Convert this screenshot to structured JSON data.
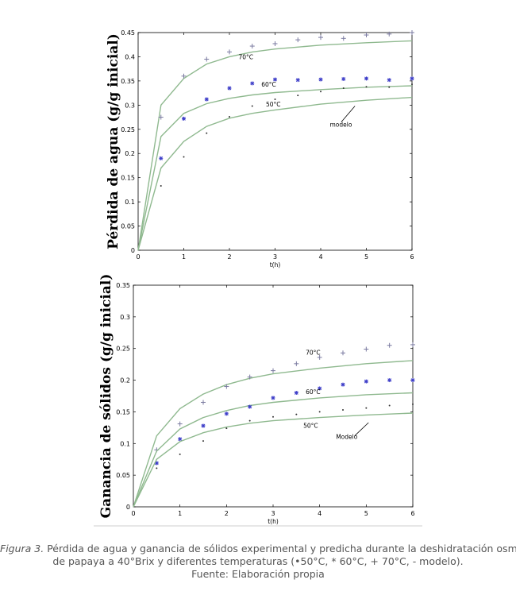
{
  "chart_data": [
    {
      "type": "line",
      "ylabel": "Pérdida de agua (g/g inicial)",
      "xlabel": "t(h)",
      "xlim": [
        0,
        6
      ],
      "ylim": [
        0,
        0.45
      ],
      "xticks": [
        "0",
        "1",
        "2",
        "3",
        "4",
        "5",
        "6"
      ],
      "yticks": [
        "0",
        "0.05",
        "0.1",
        "0.15",
        "0.2",
        "0.25",
        "0.3",
        "0.35",
        "0.4",
        "0.45"
      ],
      "grid": false,
      "series": [
        {
          "name": "70°C",
          "marker": "+",
          "points": [
            [
              0.5,
              0.275
            ],
            [
              1,
              0.36
            ],
            [
              1.5,
              0.395
            ],
            [
              2,
              0.41
            ],
            [
              2.5,
              0.422
            ],
            [
              3,
              0.427
            ],
            [
              3.5,
              0.435
            ],
            [
              4,
              0.44
            ],
            [
              4.5,
              0.438
            ],
            [
              5,
              0.445
            ],
            [
              5.5,
              0.447
            ],
            [
              6,
              0.45
            ]
          ],
          "model": [
            [
              0,
              0
            ],
            [
              0.5,
              0.3
            ],
            [
              1,
              0.355
            ],
            [
              1.5,
              0.385
            ],
            [
              2,
              0.4
            ],
            [
              2.5,
              0.41
            ],
            [
              3,
              0.416
            ],
            [
              4,
              0.424
            ],
            [
              5,
              0.429
            ],
            [
              6,
              0.433
            ]
          ]
        },
        {
          "name": "60°C",
          "marker": "*",
          "points": [
            [
              0.5,
              0.19
            ],
            [
              1,
              0.272
            ],
            [
              1.5,
              0.312
            ],
            [
              2,
              0.335
            ],
            [
              2.5,
              0.345
            ],
            [
              3,
              0.353
            ],
            [
              3.5,
              0.352
            ],
            [
              4,
              0.353
            ],
            [
              4.5,
              0.354
            ],
            [
              5,
              0.355
            ],
            [
              5.5,
              0.352
            ],
            [
              6,
              0.355
            ]
          ],
          "model": [
            [
              0,
              0
            ],
            [
              0.5,
              0.235
            ],
            [
              1,
              0.283
            ],
            [
              1.5,
              0.303
            ],
            [
              2,
              0.314
            ],
            [
              2.5,
              0.321
            ],
            [
              3,
              0.326
            ],
            [
              4,
              0.332
            ],
            [
              5,
              0.337
            ],
            [
              6,
              0.34
            ]
          ]
        },
        {
          "name": "50°C",
          "marker": ".",
          "points": [
            [
              0.5,
              0.133
            ],
            [
              1,
              0.193
            ],
            [
              1.5,
              0.242
            ],
            [
              2,
              0.276
            ],
            [
              2.5,
              0.298
            ],
            [
              3,
              0.312
            ],
            [
              3.5,
              0.32
            ],
            [
              4,
              0.328
            ],
            [
              4.5,
              0.335
            ],
            [
              5,
              0.338
            ],
            [
              5.5,
              0.337
            ],
            [
              6,
              0.343
            ]
          ],
          "model": [
            [
              0,
              0
            ],
            [
              0.5,
              0.17
            ],
            [
              1,
              0.225
            ],
            [
              1.5,
              0.256
            ],
            [
              2,
              0.273
            ],
            [
              2.5,
              0.283
            ],
            [
              3,
              0.29
            ],
            [
              4,
              0.302
            ],
            [
              5,
              0.31
            ],
            [
              6,
              0.316
            ]
          ]
        }
      ],
      "annotations": [
        {
          "text": "70°C",
          "x": 2.2,
          "y": 0.395
        },
        {
          "text": "60°C",
          "x": 2.7,
          "y": 0.338
        },
        {
          "text": "50°C",
          "x": 2.8,
          "y": 0.297
        },
        {
          "text": "modelo",
          "x": 4.2,
          "y": 0.255
        }
      ]
    },
    {
      "type": "line",
      "ylabel": "Ganancia de sólidos (g/g inicial)",
      "xlabel": "t(h)",
      "xlim": [
        0,
        6
      ],
      "ylim": [
        0,
        0.35
      ],
      "xticks": [
        "0",
        "1",
        "2",
        "3",
        "4",
        "5",
        "6"
      ],
      "yticks": [
        "0",
        "0.05",
        "0.1",
        "0.15",
        "0.2",
        "0.25",
        "0.3",
        "0.35"
      ],
      "grid": false,
      "series": [
        {
          "name": "70°C",
          "marker": "+",
          "points": [
            [
              0.5,
              0.09
            ],
            [
              1,
              0.131
            ],
            [
              1.5,
              0.165
            ],
            [
              2,
              0.19
            ],
            [
              2.5,
              0.205
            ],
            [
              3,
              0.215
            ],
            [
              3.5,
              0.226
            ],
            [
              4,
              0.236
            ],
            [
              4.5,
              0.243
            ],
            [
              5,
              0.249
            ],
            [
              5.5,
              0.255
            ],
            [
              6,
              0.256
            ]
          ],
          "model": [
            [
              0,
              0
            ],
            [
              0.5,
              0.112
            ],
            [
              1,
              0.155
            ],
            [
              1.5,
              0.178
            ],
            [
              2,
              0.193
            ],
            [
              2.5,
              0.203
            ],
            [
              3,
              0.21
            ],
            [
              4,
              0.219
            ],
            [
              5,
              0.226
            ],
            [
              6,
              0.231
            ]
          ]
        },
        {
          "name": "60°C",
          "marker": "*",
          "points": [
            [
              0.5,
              0.069
            ],
            [
              1,
              0.107
            ],
            [
              1.5,
              0.128
            ],
            [
              2,
              0.147
            ],
            [
              2.5,
              0.158
            ],
            [
              3,
              0.172
            ],
            [
              3.5,
              0.18
            ],
            [
              4,
              0.187
            ],
            [
              4.5,
              0.193
            ],
            [
              5,
              0.198
            ],
            [
              5.5,
              0.2
            ],
            [
              6,
              0.2
            ]
          ],
          "model": [
            [
              0,
              0
            ],
            [
              0.5,
              0.088
            ],
            [
              1,
              0.123
            ],
            [
              1.5,
              0.141
            ],
            [
              2,
              0.152
            ],
            [
              2.5,
              0.16
            ],
            [
              3,
              0.165
            ],
            [
              4,
              0.172
            ],
            [
              5,
              0.177
            ],
            [
              6,
              0.18
            ]
          ]
        },
        {
          "name": "50°C",
          "marker": ".",
          "points": [
            [
              0.5,
              0.061
            ],
            [
              1,
              0.083
            ],
            [
              1.5,
              0.104
            ],
            [
              2,
              0.124
            ],
            [
              2.5,
              0.136
            ],
            [
              3,
              0.142
            ],
            [
              3.5,
              0.146
            ],
            [
              4,
              0.15
            ],
            [
              4.5,
              0.153
            ],
            [
              5,
              0.156
            ],
            [
              5.5,
              0.16
            ],
            [
              6,
              0.162
            ]
          ],
          "model": [
            [
              0,
              0
            ],
            [
              0.5,
              0.075
            ],
            [
              1,
              0.103
            ],
            [
              1.5,
              0.117
            ],
            [
              2,
              0.126
            ],
            [
              2.5,
              0.132
            ],
            [
              3,
              0.136
            ],
            [
              4,
              0.141
            ],
            [
              5,
              0.145
            ],
            [
              6,
              0.148
            ]
          ]
        }
      ],
      "annotations": [
        {
          "text": "70°C",
          "x": 3.7,
          "y": 0.24
        },
        {
          "text": "60°C",
          "x": 3.7,
          "y": 0.178
        },
        {
          "text": "50°C",
          "x": 3.65,
          "y": 0.125
        },
        {
          "text": "Modelo",
          "x": 4.35,
          "y": 0.107
        }
      ]
    }
  ],
  "caption": {
    "figure_label": "Figura 3.",
    "line1": " Pérdida de agua y ganancia de sólidos experimental y predicha durante la deshidratación osmótica",
    "line2": "de papaya a 40°Brix y diferentes temperaturas (•50°C, * 60°C, + 70°C, - modelo).",
    "line3": "Fuente: Elaboración propia"
  },
  "colors": {
    "model_line": "#8fb98f",
    "marker_70": "#7a7aa0",
    "marker_60": "#3c3cc8",
    "marker_50": "#333333",
    "axis": "#000000",
    "caption_text": "#555555"
  }
}
